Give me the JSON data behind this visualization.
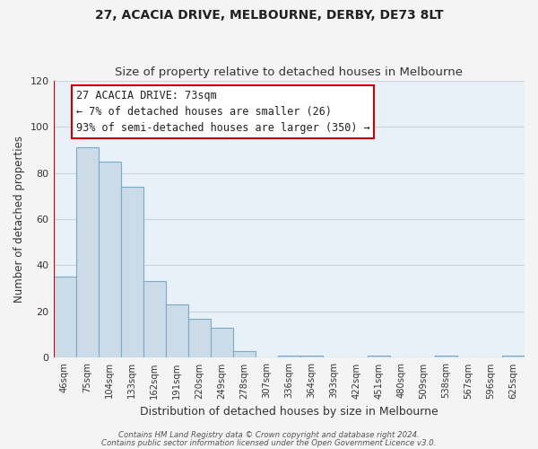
{
  "title": "27, ACACIA DRIVE, MELBOURNE, DERBY, DE73 8LT",
  "subtitle": "Size of property relative to detached houses in Melbourne",
  "xlabel": "Distribution of detached houses by size in Melbourne",
  "ylabel": "Number of detached properties",
  "bar_labels": [
    "46sqm",
    "75sqm",
    "104sqm",
    "133sqm",
    "162sqm",
    "191sqm",
    "220sqm",
    "249sqm",
    "278sqm",
    "307sqm",
    "336sqm",
    "364sqm",
    "393sqm",
    "422sqm",
    "451sqm",
    "480sqm",
    "509sqm",
    "538sqm",
    "567sqm",
    "596sqm",
    "625sqm"
  ],
  "bar_heights": [
    35,
    91,
    85,
    74,
    33,
    23,
    17,
    13,
    3,
    0,
    1,
    1,
    0,
    0,
    1,
    0,
    0,
    1,
    0,
    0,
    1
  ],
  "bar_color": "#ccdbe8",
  "bar_edge_color": "#7aaac8",
  "highlight_line_color": "#cc0000",
  "annotation_box_text": "27 ACACIA DRIVE: 73sqm\n← 7% of detached houses are smaller (26)\n93% of semi-detached houses are larger (350) →",
  "annotation_box_edge_color": "#cc0000",
  "ylim": [
    0,
    120
  ],
  "yticks": [
    0,
    20,
    40,
    60,
    80,
    100,
    120
  ],
  "grid_color": "#c8d4e0",
  "plot_bg_color": "#e8f0f8",
  "fig_bg_color": "#f4f4f4",
  "footer_line1": "Contains HM Land Registry data © Crown copyright and database right 2024.",
  "footer_line2": "Contains public sector information licensed under the Open Government Licence v3.0.",
  "title_fontsize": 10,
  "subtitle_fontsize": 9.5,
  "xlabel_fontsize": 9,
  "ylabel_fontsize": 8.5,
  "annot_fontsize": 8.5
}
